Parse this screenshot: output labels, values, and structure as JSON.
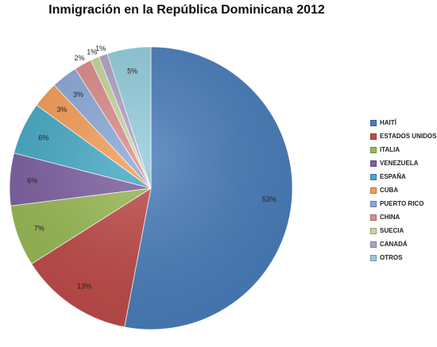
{
  "chart_data": {
    "type": "pie",
    "title": "Inmigración en la República Dominicana 2012",
    "legend_position": "right",
    "slices": [
      {
        "label": "HAITÍ",
        "value": 53,
        "display": "53%",
        "color": "#4a7ebb"
      },
      {
        "label": "ESTADOS UNIDOS",
        "value": 13,
        "display": "13%",
        "color": "#be4b48"
      },
      {
        "label": "ITALIA",
        "value": 7,
        "display": "7%",
        "color": "#98b954"
      },
      {
        "label": "VENEZUELA",
        "value": 6,
        "display": "6%",
        "color": "#7d60a0"
      },
      {
        "label": "ESPAÑA",
        "value": 6,
        "display": "6%",
        "color": "#46aac5"
      },
      {
        "label": "CUBA",
        "value": 3,
        "display": "3%",
        "color": "#f59d56"
      },
      {
        "label": "PUERTO RICO",
        "value": 3,
        "display": "3%",
        "color": "#8aa8d8"
      },
      {
        "label": "CHINA",
        "value": 2,
        "display": "2%",
        "color": "#dc8b8b"
      },
      {
        "label": "SUECIA",
        "value": 1,
        "display": "1%",
        "color": "#c3d79b"
      },
      {
        "label": "CANADÁ",
        "value": 1,
        "display": "1%",
        "color": "#b2a2c7"
      },
      {
        "label": "OTROS",
        "value": 5,
        "display": "5%",
        "color": "#93cddd"
      }
    ]
  }
}
